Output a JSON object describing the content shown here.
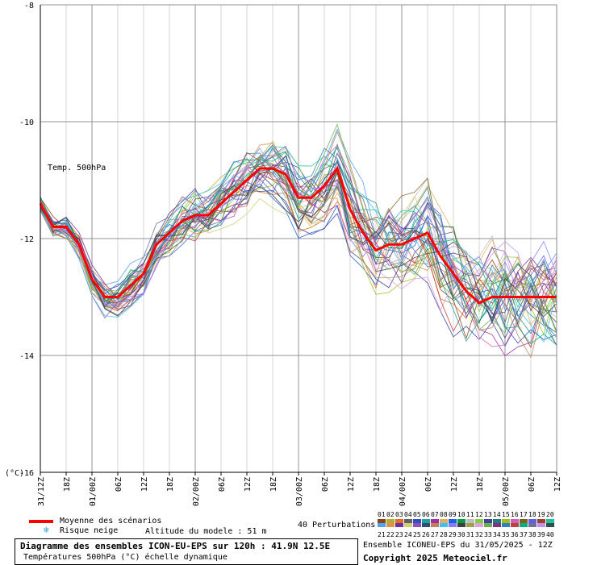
{
  "chart_data": {
    "type": "line",
    "title": "Temp. 500hPa",
    "ylabel": "(°C)",
    "ylim": [
      -16,
      -8
    ],
    "y_ticks": [
      -8,
      -10,
      -12,
      -14,
      -16
    ],
    "x_ticks": [
      "31/12Z",
      "18Z",
      "01/00Z",
      "06Z",
      "12Z",
      "18Z",
      "02/00Z",
      "06Z",
      "12Z",
      "18Z",
      "03/00Z",
      "06Z",
      "12Z",
      "18Z",
      "04/00Z",
      "06Z",
      "12Z",
      "18Z",
      "05/00Z",
      "06Z",
      "12Z"
    ],
    "x_hours": [
      0,
      6,
      12,
      18,
      24,
      30,
      36,
      42,
      48,
      54,
      60,
      66,
      72,
      78,
      84,
      90,
      96,
      102,
      108,
      114,
      120
    ],
    "grid": true,
    "mean_series": {
      "name": "Moyenne des scénarios",
      "color": "#ff0000",
      "x": [
        0,
        3,
        6,
        9,
        12,
        15,
        18,
        21,
        24,
        27,
        30,
        33,
        36,
        39,
        42,
        45,
        48,
        51,
        54,
        57,
        60,
        63,
        66,
        69,
        72,
        75,
        78,
        81,
        84,
        87,
        90,
        93,
        96,
        99,
        102,
        105,
        108,
        111,
        114,
        117,
        120
      ],
      "y": [
        -11.4,
        -11.8,
        -11.8,
        -12.1,
        -12.7,
        -13.0,
        -13.0,
        -12.8,
        -12.6,
        -12.1,
        -11.9,
        -11.7,
        -11.6,
        -11.6,
        -11.4,
        -11.2,
        -11.0,
        -10.8,
        -10.8,
        -10.9,
        -11.3,
        -11.3,
        -11.1,
        -10.8,
        -11.5,
        -11.9,
        -12.2,
        -12.1,
        -12.1,
        -12.0,
        -11.9,
        -12.3,
        -12.6,
        -12.9,
        -13.1,
        -13.0,
        -13.0,
        -13.0,
        -13.0,
        -13.0,
        -13.0
      ]
    },
    "perturbation_count": 40,
    "perturbation_colors": [
      "#8b4513",
      "#b0b030",
      "#e07020",
      "#606060",
      "#3050c0",
      "#20a0a0",
      "#a030a0",
      "#e0b060",
      "#2060e0",
      "#00a040",
      "#c0c0c0",
      "#80d040",
      "#4040a0",
      "#208080",
      "#a0c020",
      "#d060c0",
      "#806020",
      "#6060e0",
      "#a04020",
      "#20c0a0",
      "#50a0f0",
      "#e09050",
      "#7030a0",
      "#d0d070",
      "#9050c0",
      "#305070",
      "#c08060",
      "#40c0f0",
      "#8080ff",
      "#404040",
      "#a0a050",
      "#e0a0e0",
      "#6ab04c",
      "#803080",
      "#3080c0",
      "#c04040",
      "#00b080",
      "#7070a0",
      "#c090f0",
      "#2f4f4f"
    ]
  },
  "legend": {
    "mean_label": "Moyenne des scénarios",
    "snow_label": "Risque neige",
    "altitude_label": "Altitude du modele : 51 m",
    "perturbations_label": "40 Perturbations",
    "palette_top_numbers": [
      "01",
      "02",
      "03",
      "04",
      "05",
      "06",
      "07",
      "08",
      "09",
      "10",
      "11",
      "12",
      "13",
      "14",
      "15",
      "16",
      "17",
      "18",
      "19",
      "20"
    ],
    "palette_bottom_numbers": [
      "21",
      "22",
      "23",
      "24",
      "25",
      "26",
      "27",
      "28",
      "29",
      "30",
      "31",
      "32",
      "33",
      "34",
      "35",
      "36",
      "37",
      "38",
      "39",
      "40"
    ]
  },
  "footer": {
    "title": "Diagramme des ensembles ICON-EU-EPS sur 120h : 41.9N 12.5E",
    "subtitle": "Températures 500hPa (°C) échelle dynamique",
    "run_info": "Ensemble ICONEU-EPS du 31/05/2025 - 12Z",
    "copyright": "Copyright 2025 Meteociel.fr"
  },
  "colors": {
    "mean": "#ff0000",
    "grid": "#888888",
    "snow_icon": "#3aa0e0"
  },
  "icons": {
    "snow": "snowflake-icon"
  }
}
